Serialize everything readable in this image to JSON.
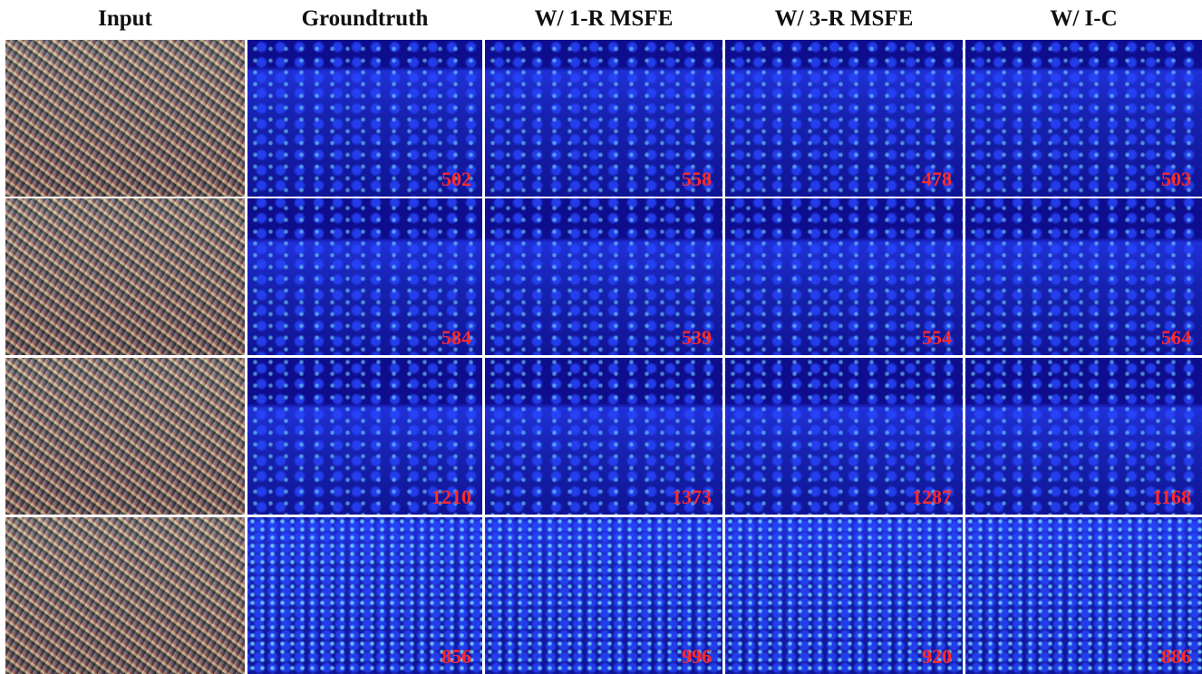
{
  "headers": [
    "Input",
    "Groundtruth",
    "W/ 1-R MSFE",
    "W/ 3-R MSFE",
    "W/ I-C"
  ],
  "rows": [
    {
      "counts": [
        502,
        558,
        478,
        503
      ]
    },
    {
      "counts": [
        584,
        539,
        554,
        564
      ]
    },
    {
      "counts": [
        1210,
        1373,
        1287,
        1168
      ]
    },
    {
      "counts": [
        856,
        996,
        920,
        886
      ]
    }
  ]
}
